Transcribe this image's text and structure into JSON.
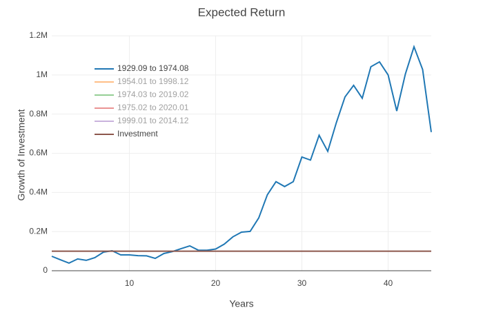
{
  "chart_data": {
    "type": "line",
    "title": "Expected Return",
    "x_label": "Years",
    "y_label": "Growth of Investment",
    "x": [
      1,
      2,
      3,
      4,
      5,
      6,
      7,
      8,
      9,
      10,
      11,
      12,
      13,
      14,
      15,
      16,
      17,
      18,
      19,
      20,
      21,
      22,
      23,
      24,
      25,
      26,
      27,
      28,
      29,
      30,
      31,
      32,
      33,
      34,
      35,
      36,
      37,
      38,
      39,
      40,
      41,
      42,
      43,
      44,
      45
    ],
    "series": [
      {
        "name": "1929.09 to 1974.08",
        "color": "#1f77b4",
        "visible": true,
        "values": [
          74000,
          56000,
          39000,
          60000,
          53000,
          67000,
          95000,
          102000,
          81000,
          81000,
          77000,
          76000,
          63000,
          88000,
          98000,
          113000,
          127000,
          105000,
          105000,
          111000,
          136000,
          173000,
          197000,
          201000,
          270000,
          388000,
          455000,
          430000,
          455000,
          581000,
          565000,
          692000,
          610000,
          757000,
          888000,
          947000,
          881000,
          1042000,
          1067000,
          1000000,
          816000,
          1005000,
          1144000,
          1028000,
          708000
        ]
      },
      {
        "name": "1954.01 to 1998.12",
        "color": "#ff7f0e",
        "visible": false
      },
      {
        "name": "1974.03 to 2019.02",
        "color": "#2ca02c",
        "visible": false
      },
      {
        "name": "1975.02 to 2020.01",
        "color": "#d62728",
        "visible": false
      },
      {
        "name": "1999.01 to 2014.12",
        "color": "#9467bd",
        "visible": false
      },
      {
        "name": "Investment",
        "color": "#8c564b",
        "visible": true,
        "values": [
          100000,
          100000,
          100000,
          100000,
          100000,
          100000,
          100000,
          100000,
          100000,
          100000,
          100000,
          100000,
          100000,
          100000,
          100000,
          100000,
          100000,
          100000,
          100000,
          100000,
          100000,
          100000,
          100000,
          100000,
          100000,
          100000,
          100000,
          100000,
          100000,
          100000,
          100000,
          100000,
          100000,
          100000,
          100000,
          100000,
          100000,
          100000,
          100000,
          100000,
          100000,
          100000,
          100000,
          100000,
          100000
        ]
      }
    ],
    "xlim": [
      1,
      45
    ],
    "xticks": [
      10,
      20,
      30,
      40
    ],
    "ylim": [
      0,
      1200000
    ],
    "yticks": [
      0,
      {
        "value": 200000,
        "label": "0.2M"
      },
      {
        "value": 400000,
        "label": "0.4M"
      },
      {
        "value": 600000,
        "label": "0.6M"
      },
      {
        "value": 800000,
        "label": "0.8M"
      },
      {
        "value": 1000000,
        "label": "1M"
      },
      {
        "value": 1200000,
        "label": "1.2M"
      }
    ],
    "grid": true
  }
}
